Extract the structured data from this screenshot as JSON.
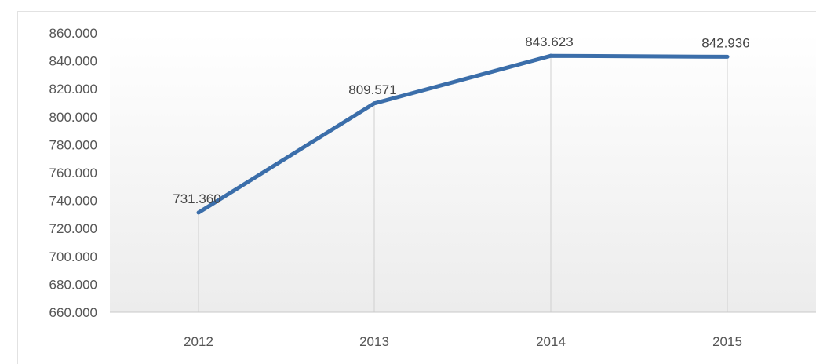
{
  "chart_data": {
    "type": "line",
    "categories": [
      "2012",
      "2013",
      "2014",
      "2015"
    ],
    "series": [
      {
        "values": [
          731360,
          809571,
          843623,
          842936
        ],
        "color": "#3b6eaa",
        "data_labels": [
          "731.360",
          "809.571",
          "843.623",
          "842.936"
        ]
      }
    ],
    "ylim": [
      660000,
      860000
    ],
    "yticks": [
      660000,
      680000,
      700000,
      720000,
      740000,
      760000,
      780000,
      800000,
      820000,
      840000,
      860000
    ],
    "ytick_labels": [
      "660.000",
      "680.000",
      "700.000",
      "720.000",
      "740.000",
      "760.000",
      "780.000",
      "800.000",
      "820.000",
      "840.000",
      "860.000"
    ],
    "grid": "vertical",
    "legend": "none",
    "title": "",
    "xlabel": "",
    "ylabel": ""
  }
}
